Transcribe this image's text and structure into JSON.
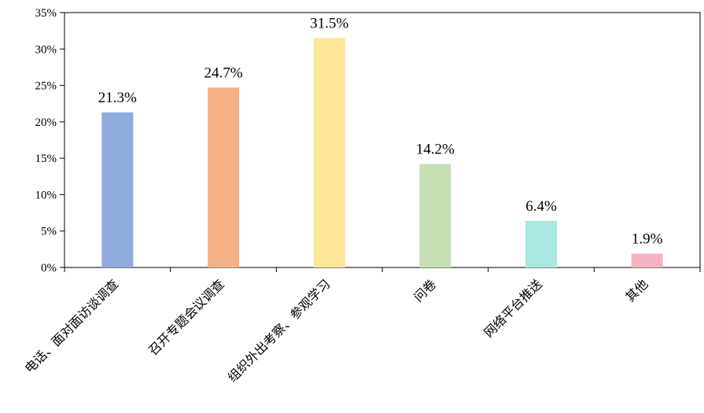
{
  "chart_data": {
    "type": "bar",
    "categories": [
      "电话、面对面访谈调查",
      "召开专题会议调查",
      "组织外出考察、参观学习",
      "问卷",
      "网络平台推送",
      "其他"
    ],
    "values": [
      21.3,
      24.7,
      31.5,
      14.2,
      6.4,
      1.9
    ],
    "data_labels": [
      "21.3%",
      "24.7%",
      "31.5%",
      "14.2%",
      "6.4%",
      "1.9%"
    ],
    "colors": [
      "#8faadc",
      "#f4b183",
      "#ffe699",
      "#c5e0b4",
      "#a9e8e1",
      "#f4b5c0"
    ],
    "y_ticks": [
      "0%",
      "5%",
      "10%",
      "15%",
      "20%",
      "25%",
      "30%",
      "35%"
    ],
    "ylim": [
      0,
      35
    ],
    "title": "",
    "xlabel": "",
    "ylabel": "",
    "grid": false,
    "legend": "none"
  }
}
